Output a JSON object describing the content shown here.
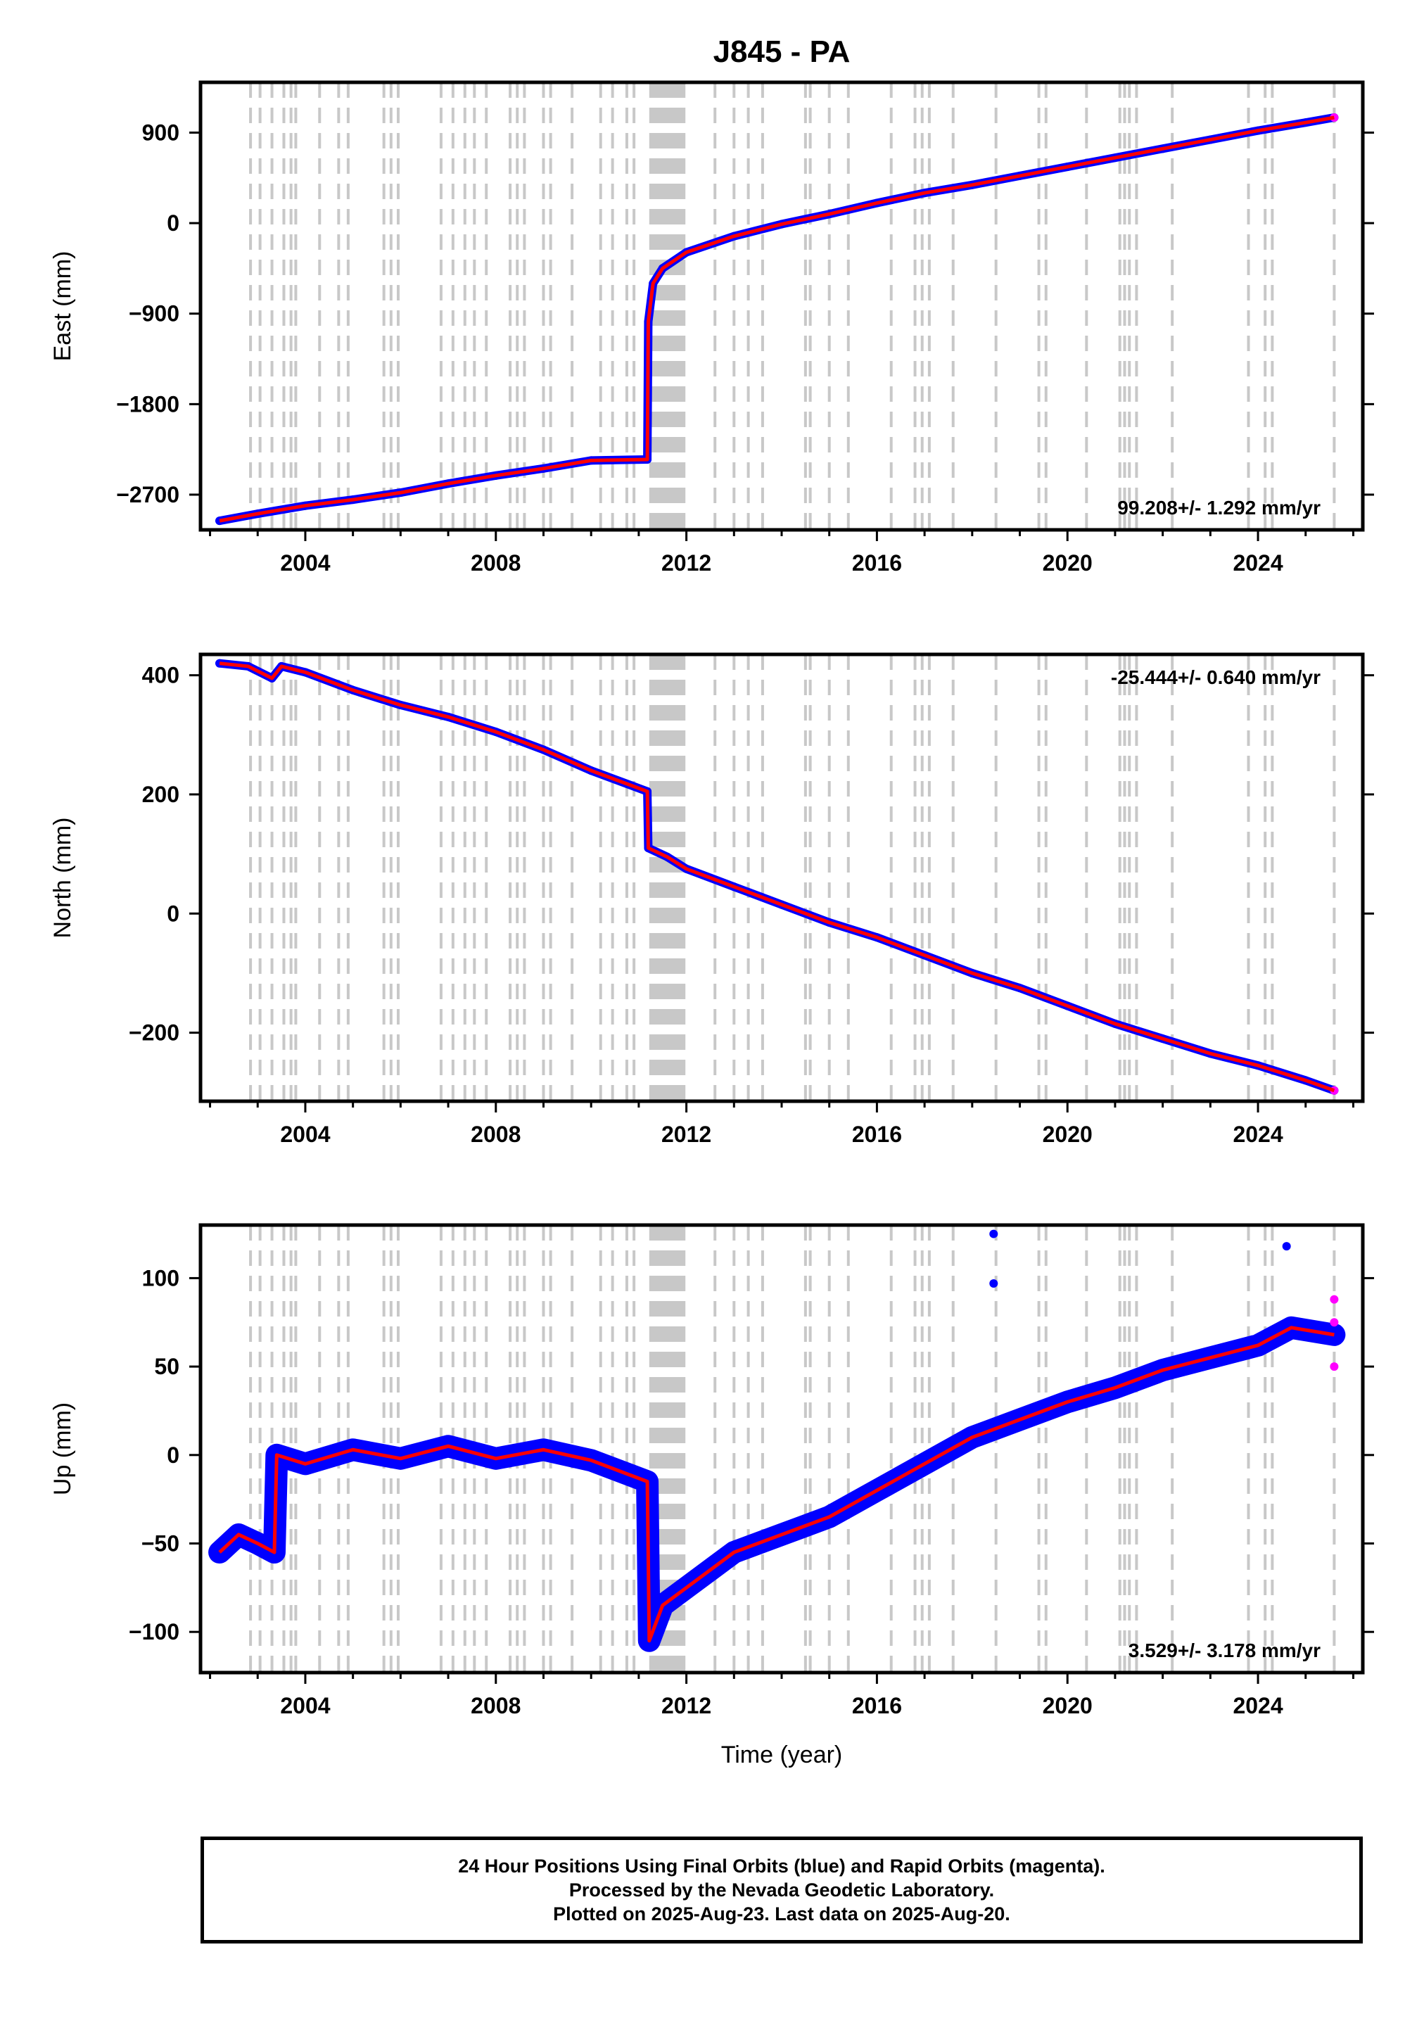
{
  "title": "J845 - PA",
  "chart_data": [
    {
      "type": "scatter",
      "panel": "east",
      "ylabel": "East (mm)",
      "xlabel": "",
      "xlim": [
        2001.8,
        2026.2
      ],
      "ylim": [
        -3050,
        1400
      ],
      "x_ticks": [
        2004,
        2008,
        2012,
        2016,
        2020,
        2024
      ],
      "y_ticks": [
        900,
        0,
        -900,
        -1800,
        -2700
      ],
      "rate_text": "99.208+/- 1.292 mm/yr",
      "rate_position": "bottom-right",
      "series": [
        {
          "color": "#0000ff",
          "marker": "dot",
          "x": [
            2002.2,
            2003.0,
            2004.0,
            2005.0,
            2006.0,
            2007.0,
            2008.0,
            2009.0,
            2010.0,
            2011.18,
            2011.2,
            2011.3,
            2011.5,
            2012.0,
            2013.0,
            2014.0,
            2015.0,
            2016.0,
            2017.0,
            2018.0,
            2019.0,
            2020.0,
            2021.0,
            2022.0,
            2023.0,
            2024.0,
            2025.0,
            2025.6
          ],
          "y": [
            -2960,
            -2890,
            -2810,
            -2750,
            -2680,
            -2590,
            -2510,
            -2440,
            -2360,
            -2350,
            -980,
            -600,
            -450,
            -290,
            -130,
            -10,
            90,
            200,
            300,
            380,
            470,
            560,
            650,
            740,
            830,
            920,
            1000,
            1050
          ]
        },
        {
          "color": "#ff00ff",
          "marker": "dot",
          "x": [
            2025.6
          ],
          "y": [
            1050
          ]
        }
      ],
      "model_line": {
        "color": "#ff0000",
        "x": [
          2002.2,
          2003.0,
          2004.0,
          2005.0,
          2006.0,
          2007.0,
          2008.0,
          2009.0,
          2010.0,
          2011.18,
          2011.2,
          2011.3,
          2011.5,
          2012.0,
          2013.0,
          2014.0,
          2015.0,
          2016.0,
          2017.0,
          2018.0,
          2019.0,
          2020.0,
          2021.0,
          2022.0,
          2023.0,
          2024.0,
          2025.0,
          2025.6
        ],
        "y": [
          -2960,
          -2890,
          -2810,
          -2750,
          -2680,
          -2590,
          -2510,
          -2440,
          -2360,
          -2350,
          -980,
          -600,
          -450,
          -290,
          -130,
          -10,
          90,
          200,
          300,
          380,
          470,
          560,
          650,
          740,
          830,
          920,
          1000,
          1050
        ]
      }
    },
    {
      "type": "scatter",
      "panel": "north",
      "ylabel": "North (mm)",
      "xlabel": "",
      "xlim": [
        2001.8,
        2026.2
      ],
      "ylim": [
        -315,
        435
      ],
      "x_ticks": [
        2004,
        2008,
        2012,
        2016,
        2020,
        2024
      ],
      "y_ticks": [
        400,
        200,
        0,
        -200
      ],
      "rate_text": "-25.444+/- 0.640 mm/yr",
      "rate_position": "top-right",
      "series": [
        {
          "color": "#0000ff",
          "marker": "dot",
          "x": [
            2002.2,
            2002.8,
            2003.3,
            2003.5,
            2004.0,
            2005.0,
            2006.0,
            2007.0,
            2008.0,
            2009.0,
            2010.0,
            2011.18,
            2011.2,
            2011.6,
            2012.0,
            2013.0,
            2014.0,
            2015.0,
            2016.0,
            2017.0,
            2018.0,
            2019.0,
            2020.0,
            2021.0,
            2022.0,
            2023.0,
            2024.0,
            2025.0,
            2025.6
          ],
          "y": [
            420,
            415,
            395,
            415,
            405,
            375,
            350,
            330,
            305,
            275,
            240,
            205,
            110,
            95,
            75,
            45,
            15,
            -15,
            -40,
            -70,
            -100,
            -125,
            -155,
            -185,
            -210,
            -235,
            -255,
            -280,
            -297
          ]
        },
        {
          "color": "#ff00ff",
          "marker": "dot",
          "x": [
            2025.6
          ],
          "y": [
            -297
          ]
        }
      ],
      "model_line": {
        "color": "#ff0000",
        "x": [
          2002.2,
          2002.8,
          2003.3,
          2003.5,
          2004.0,
          2005.0,
          2006.0,
          2007.0,
          2008.0,
          2009.0,
          2010.0,
          2011.18,
          2011.2,
          2011.6,
          2012.0,
          2013.0,
          2014.0,
          2015.0,
          2016.0,
          2017.0,
          2018.0,
          2019.0,
          2020.0,
          2021.0,
          2022.0,
          2023.0,
          2024.0,
          2025.0,
          2025.6
        ],
        "y": [
          420,
          415,
          395,
          415,
          405,
          375,
          350,
          330,
          305,
          275,
          240,
          205,
          110,
          95,
          75,
          45,
          15,
          -15,
          -40,
          -70,
          -100,
          -125,
          -155,
          -185,
          -210,
          -235,
          -255,
          -280,
          -297
        ]
      }
    },
    {
      "type": "scatter",
      "panel": "up",
      "ylabel": "Up (mm)",
      "xlabel": "Time (year)",
      "xlim": [
        2001.8,
        2026.2
      ],
      "ylim": [
        -123,
        130
      ],
      "x_ticks": [
        2004,
        2008,
        2012,
        2016,
        2020,
        2024
      ],
      "y_ticks": [
        100,
        50,
        0,
        -50,
        -100
      ],
      "rate_text": "3.529+/- 3.178 mm/yr",
      "rate_position": "bottom-right",
      "series": [
        {
          "color": "#0000ff",
          "marker": "dot",
          "x": [
            2002.2,
            2002.6,
            2003.0,
            2003.35,
            2003.4,
            2004.0,
            2005.0,
            2006.0,
            2007.0,
            2008.0,
            2009.0,
            2010.0,
            2011.18,
            2011.22,
            2011.5,
            2012.0,
            2013.0,
            2014.0,
            2015.0,
            2016.0,
            2017.0,
            2018.0,
            2019.0,
            2020.0,
            2021.0,
            2022.0,
            2023.0,
            2024.0,
            2024.7,
            2025.6
          ],
          "y": [
            -55,
            -45,
            -50,
            -55,
            0,
            -5,
            3,
            -2,
            5,
            -2,
            3,
            -3,
            -15,
            -105,
            -85,
            -75,
            -55,
            -45,
            -35,
            -20,
            -5,
            10,
            20,
            30,
            38,
            48,
            55,
            62,
            72,
            68
          ]
        },
        {
          "color": "#0000ff",
          "marker": "dot",
          "x": [
            2018.45,
            2018.45,
            2024.6
          ],
          "y": [
            125,
            97,
            118
          ]
        },
        {
          "color": "#ff00ff",
          "marker": "dot",
          "x": [
            2025.6,
            2025.6,
            2025.6
          ],
          "y": [
            88,
            75,
            50
          ]
        }
      ],
      "model_line": {
        "color": "#ff0000",
        "x": [
          2002.2,
          2002.6,
          2003.0,
          2003.35,
          2003.4,
          2004.0,
          2005.0,
          2006.0,
          2007.0,
          2008.0,
          2009.0,
          2010.0,
          2011.18,
          2011.22,
          2011.5,
          2012.0,
          2013.0,
          2014.0,
          2015.0,
          2016.0,
          2017.0,
          2018.0,
          2019.0,
          2020.0,
          2021.0,
          2022.0,
          2023.0,
          2024.0,
          2024.7,
          2025.6
        ],
        "y": [
          -55,
          -45,
          -50,
          -55,
          0,
          -5,
          3,
          -2,
          5,
          -2,
          3,
          -3,
          -15,
          -105,
          -85,
          -75,
          -55,
          -45,
          -35,
          -20,
          -5,
          10,
          20,
          30,
          38,
          48,
          55,
          62,
          72,
          68
        ]
      }
    }
  ],
  "event_lines": {
    "color": "#c8c8c8",
    "years": [
      2002.85,
      2003.05,
      2003.3,
      2003.55,
      2003.7,
      2003.8,
      2004.3,
      2004.7,
      2004.9,
      2005.65,
      2005.8,
      2005.95,
      2006.85,
      2007.1,
      2007.35,
      2007.55,
      2007.8,
      2008.3,
      2008.45,
      2008.6,
      2009.0,
      2009.15,
      2009.6,
      2010.2,
      2010.45,
      2010.75,
      2010.9,
      2011.25,
      2011.3,
      2011.35,
      2011.4,
      2011.45,
      2011.5,
      2011.55,
      2011.6,
      2011.65,
      2011.7,
      2011.75,
      2011.8,
      2011.85,
      2011.9,
      2011.95,
      2012.6,
      2013.0,
      2013.3,
      2013.6,
      2014.5,
      2014.6,
      2015.0,
      2015.4,
      2016.3,
      2016.8,
      2016.95,
      2017.1,
      2017.6,
      2018.5,
      2019.4,
      2019.55,
      2020.4,
      2021.1,
      2021.2,
      2021.3,
      2021.45,
      2022.2,
      2023.8,
      2024.15,
      2024.3,
      2025.6
    ]
  },
  "footer": {
    "line1": "24 Hour Positions Using Final Orbits (blue) and Rapid Orbits (magenta).",
    "line2": "Processed by the Nevada Geodetic Laboratory.",
    "line3": "Plotted on 2025-Aug-23. Last data on 2025-Aug-20."
  }
}
